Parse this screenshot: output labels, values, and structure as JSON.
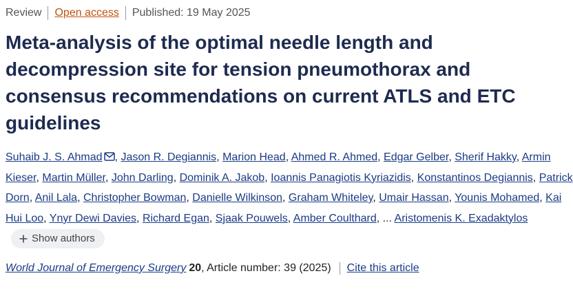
{
  "header": {
    "article_type": "Review",
    "access": "Open access",
    "published": "Published: 19 May 2025"
  },
  "title": "Meta-analysis of the optimal needle length and decompression site for tension pneumothorax and consensus recommendations on current ATLS and ETC guidelines",
  "authors": [
    "Suhaib J. S. Ahmad",
    "Jason R. Degiannis",
    "Marion Head",
    "Ahmed R. Ahmed",
    "Edgar Gelber",
    "Sherif Hakky",
    "Armin Kieser",
    "Martin Müller",
    "John Darling",
    "Dominik A. Jakob",
    "Ioannis Panagiotis Kyriazidis",
    "Konstantinos Degiannis",
    "Patrick Dorn",
    "Anil Lala",
    "Christopher Bowman",
    "Danielle Wilkinson",
    "Graham Whiteley",
    "Umair Hassan",
    "Younis Mohamed",
    "Kai Hui Loo",
    "Ynyr Dewi Davies",
    "Richard Egan",
    "Sjaak Pouwels",
    "Amber Coulthard",
    "Aristomenis K. Exadaktylos"
  ],
  "separator": ",",
  "omitted": "...",
  "show_authors": "Show authors",
  "citation": {
    "journal": "World Journal of Emergency Surgery",
    "volume": "20",
    "details": ", Article number: 39 (2025)",
    "cite": "Cite this article"
  }
}
